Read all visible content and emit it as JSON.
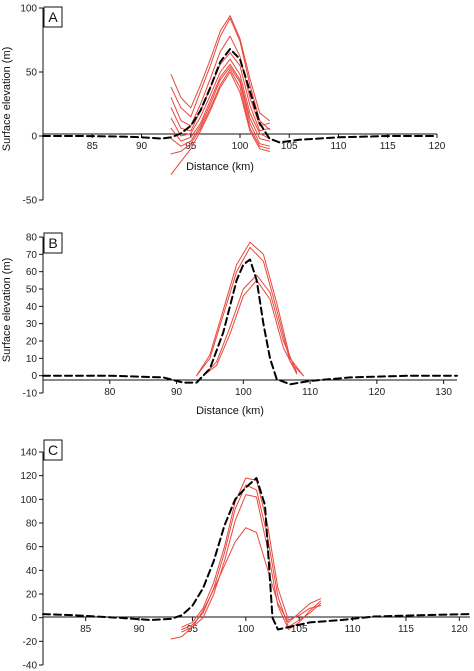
{
  "figure": {
    "colors": {
      "observed": "#e8473d",
      "model": "#000000",
      "axis": "#111111"
    }
  },
  "chart_data": [
    {
      "type": "line",
      "panel_label": "A",
      "xlabel": "Distance (km)",
      "ylabel": "Surface elevation (m)",
      "xlim": [
        80,
        120
      ],
      "ylim": [
        -50,
        100
      ],
      "xticks": [
        "85",
        "90",
        "95",
        "100",
        "105",
        "110",
        "115",
        "120"
      ],
      "yticks": [
        "-50",
        "0",
        "50",
        "100"
      ],
      "grid": false,
      "series": [
        {
          "style": "red",
          "x": [
            93,
            94,
            95,
            96,
            97,
            98,
            99,
            100,
            101,
            102,
            103
          ],
          "y": [
            48,
            30,
            22,
            40,
            60,
            82,
            94,
            76,
            45,
            18,
            12
          ]
        },
        {
          "style": "red",
          "x": [
            93,
            94,
            95,
            96,
            97,
            98,
            99,
            100,
            101,
            102,
            103
          ],
          "y": [
            38,
            22,
            15,
            35,
            55,
            78,
            92,
            74,
            40,
            12,
            5
          ]
        },
        {
          "style": "red",
          "x": [
            93,
            94,
            95,
            96,
            97,
            98,
            99,
            100,
            101,
            102,
            103
          ],
          "y": [
            30,
            12,
            8,
            25,
            45,
            66,
            78,
            62,
            30,
            8,
            10
          ]
        },
        {
          "style": "red",
          "x": [
            93,
            94,
            95,
            96,
            97,
            98,
            99,
            100,
            101,
            102,
            103
          ],
          "y": [
            22,
            6,
            4,
            20,
            38,
            56,
            65,
            55,
            24,
            4,
            6
          ]
        },
        {
          "style": "red",
          "x": [
            93,
            94,
            95,
            96,
            97,
            98,
            99,
            100,
            101,
            102,
            103
          ],
          "y": [
            14,
            0,
            2,
            15,
            32,
            50,
            60,
            48,
            18,
            2,
            -2
          ]
        },
        {
          "style": "red",
          "x": [
            93,
            94,
            95,
            96,
            97,
            98,
            99,
            100,
            101,
            102,
            103
          ],
          "y": [
            6,
            -4,
            -1,
            10,
            28,
            46,
            56,
            44,
            14,
            -2,
            -4
          ]
        },
        {
          "style": "red",
          "x": [
            93,
            94,
            95,
            96,
            97,
            98,
            99,
            100,
            101,
            102,
            103
          ],
          "y": [
            -2,
            -8,
            -4,
            8,
            25,
            44,
            54,
            42,
            10,
            -6,
            -8
          ]
        },
        {
          "style": "red",
          "x": [
            93,
            94,
            95,
            96,
            97,
            98,
            99,
            100,
            101,
            102,
            103
          ],
          "y": [
            -14,
            -12,
            -6,
            6,
            22,
            40,
            52,
            38,
            6,
            -8,
            -10
          ]
        },
        {
          "style": "red",
          "x": [
            93,
            94,
            95,
            96,
            97,
            98,
            99,
            100,
            101,
            102,
            103
          ],
          "y": [
            -30,
            -20,
            -10,
            4,
            20,
            38,
            50,
            34,
            4,
            -10,
            -12
          ]
        },
        {
          "style": "model",
          "x": [
            80,
            84,
            88,
            90,
            92,
            93,
            94,
            95,
            96,
            97,
            98,
            99,
            100,
            101,
            102,
            103,
            104,
            106,
            110,
            115,
            120
          ],
          "y": [
            0,
            0,
            -0.5,
            -1,
            -2,
            -1,
            2,
            8,
            20,
            38,
            58,
            68,
            60,
            35,
            10,
            -2,
            -5,
            -3,
            -1,
            0,
            0
          ]
        }
      ]
    },
    {
      "type": "line",
      "panel_label": "B",
      "xlabel": "Distance (km)",
      "ylabel": "Surface elevation (m)",
      "xlim": [
        70,
        132
      ],
      "ylim": [
        -10,
        80
      ],
      "xticks": [
        "80",
        "90",
        "100",
        "110",
        "120",
        "130"
      ],
      "yticks": [
        "-10",
        "0",
        "10",
        "20",
        "30",
        "40",
        "50",
        "60",
        "70",
        "80"
      ],
      "grid": false,
      "series": [
        {
          "style": "red",
          "x": [
            93,
            95,
            97,
            99,
            101,
            103,
            105,
            107,
            109
          ],
          "y": [
            0,
            12,
            38,
            64,
            77,
            70,
            42,
            10,
            0
          ]
        },
        {
          "style": "red",
          "x": [
            93,
            95,
            97,
            99,
            101,
            103,
            105,
            107,
            109
          ],
          "y": [
            0,
            10,
            35,
            60,
            74,
            66,
            38,
            8,
            0
          ]
        },
        {
          "style": "red",
          "x": [
            94,
            96,
            98,
            100,
            102,
            104,
            106,
            108
          ],
          "y": [
            0,
            8,
            28,
            50,
            58,
            48,
            20,
            2
          ]
        },
        {
          "style": "red",
          "x": [
            94,
            96,
            98,
            100,
            102,
            104,
            106,
            108
          ],
          "y": [
            0,
            6,
            24,
            46,
            55,
            44,
            16,
            1
          ]
        },
        {
          "style": "model",
          "x": [
            70,
            80,
            88,
            91,
            93,
            95,
            97,
            99,
            100,
            101,
            102,
            103,
            104,
            105,
            107,
            110,
            116,
            125,
            132
          ],
          "y": [
            0,
            0,
            -1,
            -4,
            -4,
            4,
            25,
            55,
            64,
            67,
            55,
            30,
            10,
            -2,
            -5,
            -3,
            -1,
            0,
            0
          ]
        }
      ]
    },
    {
      "type": "line",
      "panel_label": "C",
      "xlabel": "",
      "ylabel": "",
      "xlim": [
        81,
        121
      ],
      "ylim": [
        -40,
        140
      ],
      "xticks": [
        "85",
        "90",
        "95",
        "100",
        "105",
        "110",
        "115",
        "120"
      ],
      "yticks": [
        "-40",
        "-20",
        "0",
        "20",
        "40",
        "60",
        "80",
        "100",
        "120",
        "140"
      ],
      "grid": false,
      "series": [
        {
          "style": "red",
          "x": [
            94,
            95,
            96,
            97,
            98,
            99,
            100,
            101,
            102,
            103,
            104,
            105,
            106,
            107
          ],
          "y": [
            -8,
            -4,
            8,
            30,
            60,
            98,
            118,
            116,
            80,
            25,
            -2,
            2,
            8,
            10
          ]
        },
        {
          "style": "red",
          "x": [
            94,
            95,
            96,
            97,
            98,
            99,
            100,
            101,
            102,
            103,
            104,
            105,
            106,
            107
          ],
          "y": [
            -10,
            -6,
            4,
            25,
            55,
            92,
            112,
            108,
            70,
            18,
            -8,
            -2,
            4,
            12
          ]
        },
        {
          "style": "red",
          "x": [
            94,
            95,
            96,
            97,
            98,
            99,
            100,
            101,
            102,
            103,
            104,
            105,
            106,
            107
          ],
          "y": [
            -12,
            -8,
            0,
            20,
            48,
            82,
            104,
            102,
            60,
            10,
            -10,
            -4,
            6,
            14
          ]
        },
        {
          "style": "red",
          "x": [
            93,
            94,
            95,
            96,
            97,
            98,
            99,
            100,
            101,
            102,
            103,
            104,
            105,
            106,
            107
          ],
          "y": [
            -18,
            -16,
            -8,
            6,
            24,
            44,
            64,
            76,
            72,
            42,
            12,
            -4,
            4,
            12,
            16
          ]
        },
        {
          "style": "model",
          "x": [
            81,
            84,
            88,
            91,
            93,
            94,
            95,
            96,
            97,
            98,
            99,
            100,
            101,
            101.8,
            102.5,
            103,
            104,
            106,
            109,
            112,
            116,
            121
          ],
          "y": [
            3,
            2,
            0,
            -2,
            -1,
            2,
            10,
            25,
            48,
            78,
            100,
            110,
            118,
            95,
            0,
            -10,
            -8,
            -4,
            -2,
            1,
            2,
            3
          ]
        }
      ]
    }
  ]
}
